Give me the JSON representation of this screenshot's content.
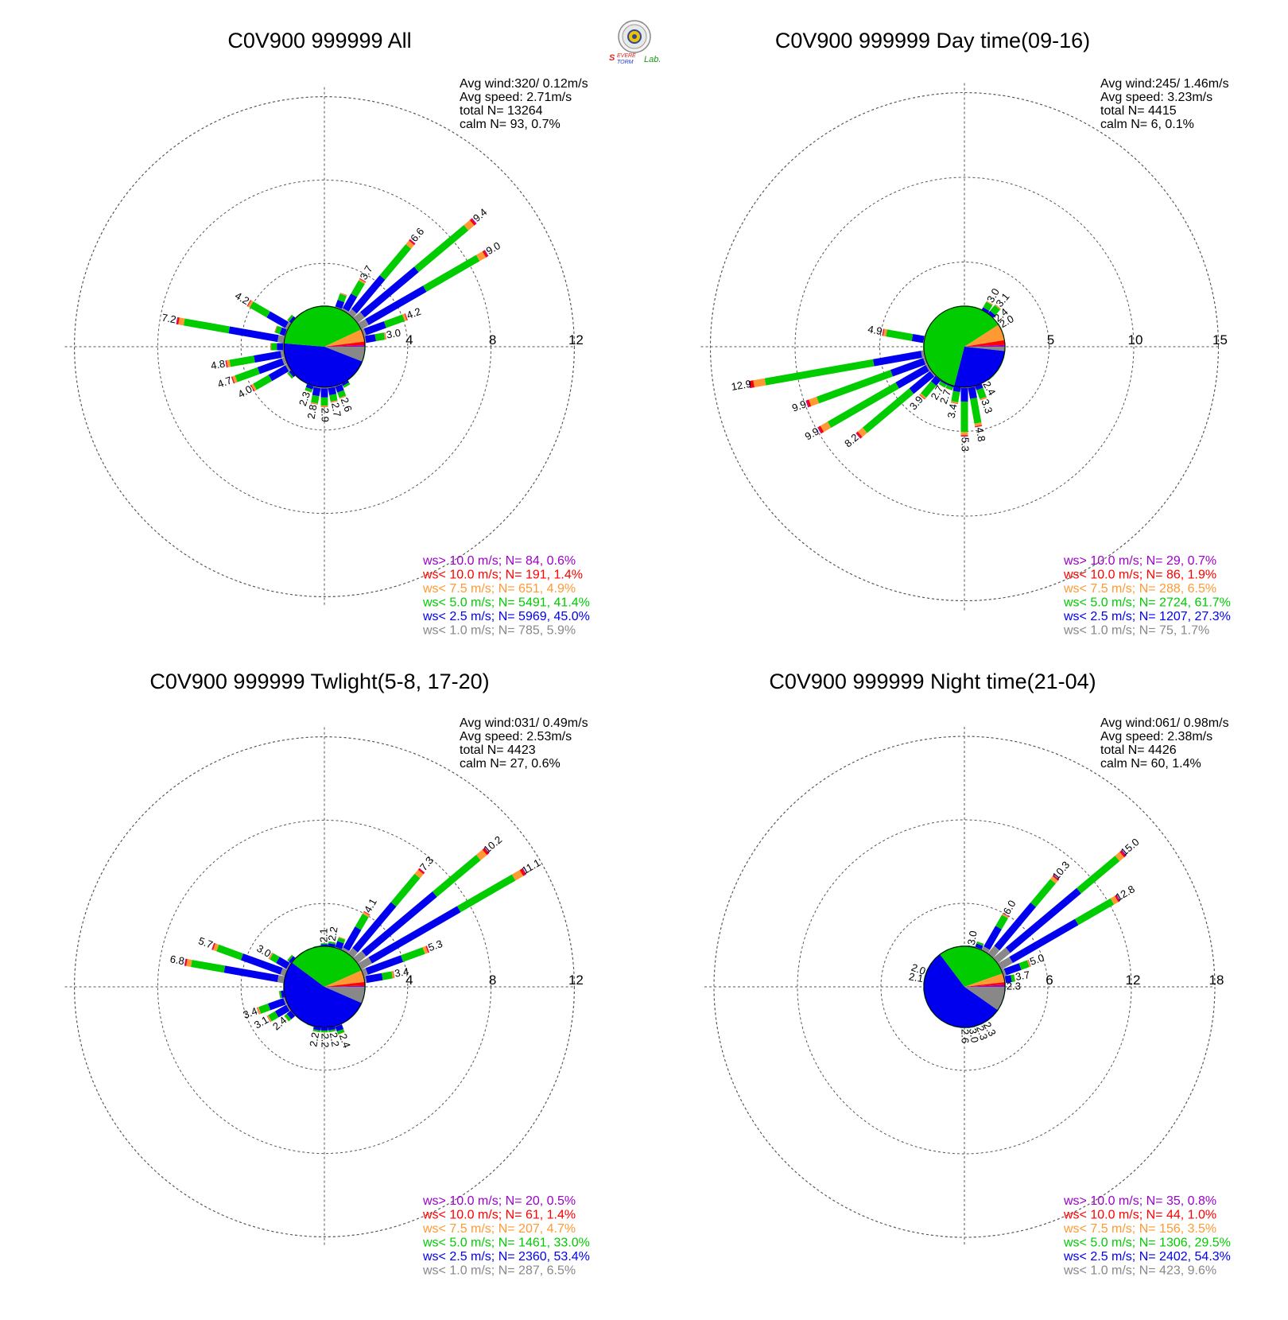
{
  "logo": {
    "word1": "Severe",
    "word2": "Storm",
    "word3": "Lab."
  },
  "legend_colors": {
    "gt10": "#9b00c8",
    "lt10": "#ff0000",
    "lt7_5": "#ff9933",
    "lt5": "#00cc00",
    "lt2_5": "#0000ee",
    "lt1": "#888888"
  },
  "chart_data": [
    {
      "type": "polar-stacked-bar",
      "title": "C0V900 999999 All",
      "stats": {
        "avg_wind": "Avg wind:320/ 0.12m/s",
        "avg_speed": "Avg speed: 2.71m/s",
        "total": "total N=       13264",
        "calm": "calm N=     93,   0.7%"
      },
      "rings": [
        4,
        8,
        12
      ],
      "ring_labels": [
        "4",
        "8",
        "12"
      ],
      "legend": [
        {
          "label": "ws> 10.0 m/s; N=",
          "n": "84",
          "pct": "0.6%",
          "color": "#9b00c8"
        },
        {
          "label": "ws< 10.0 m/s; N=",
          "n": "191",
          "pct": "1.4%",
          "color": "#ff0000"
        },
        {
          "label": "ws<  7.5 m/s; N=",
          "n": "651",
          "pct": "4.9%",
          "color": "#ff9933"
        },
        {
          "label": "ws<  5.0 m/s; N=",
          "n": "5491",
          "pct": "41.4%",
          "color": "#00cc00"
        },
        {
          "label": "ws<  2.5 m/s; N=",
          "n": "5969",
          "pct": "45.0%",
          "color": "#0000ee"
        },
        {
          "label": "ws<  1.0 m/s; N=",
          "n": "785",
          "pct": "5.9%",
          "color": "#888888"
        }
      ],
      "pie": [
        5.9,
        45.0,
        41.4,
        4.9,
        1.4,
        0.6
      ],
      "bars": [
        {
          "dir": 10,
          "total": 1.9
        },
        {
          "dir": 20,
          "total": 2.7
        },
        {
          "dir": 30,
          "total": 3.7,
          "label": "3.7"
        },
        {
          "dir": 40,
          "total": 6.6,
          "label": "6.6"
        },
        {
          "dir": 50,
          "total": 9.4,
          "label": "9.4"
        },
        {
          "dir": 60,
          "total": 9.0,
          "label": "9.0"
        },
        {
          "dir": 70,
          "total": 4.2,
          "label": "4.2"
        },
        {
          "dir": 80,
          "total": 3.0,
          "label": "3.0"
        },
        {
          "dir": 90,
          "total": 1.8
        },
        {
          "dir": 100,
          "total": 1.6
        },
        {
          "dir": 110,
          "total": 1.6
        },
        {
          "dir": 120,
          "total": 1.7
        },
        {
          "dir": 130,
          "total": 1.8
        },
        {
          "dir": 140,
          "total": 1.9
        },
        {
          "dir": 150,
          "total": 2.2
        },
        {
          "dir": 160,
          "total": 2.6,
          "label": "2.6"
        },
        {
          "dir": 170,
          "total": 2.7,
          "label": "2.7"
        },
        {
          "dir": 180,
          "total": 2.9,
          "label": "2.9"
        },
        {
          "dir": 190,
          "total": 2.8,
          "label": "2.8"
        },
        {
          "dir": 200,
          "total": 2.3,
          "label": "2.3"
        },
        {
          "dir": 210,
          "total": 1.8
        },
        {
          "dir": 220,
          "total": 1.9
        },
        {
          "dir": 230,
          "total": 2.2
        },
        {
          "dir": 240,
          "total": 4.0,
          "label": "4.0"
        },
        {
          "dir": 250,
          "total": 4.7,
          "label": "4.7"
        },
        {
          "dir": 260,
          "total": 4.8,
          "label": "4.8"
        },
        {
          "dir": 270,
          "total": 2.6
        },
        {
          "dir": 280,
          "total": 7.2,
          "label": "7.2"
        },
        {
          "dir": 290,
          "total": 2.5
        },
        {
          "dir": 300,
          "total": 4.2,
          "label": "4.2"
        },
        {
          "dir": 310,
          "total": 2.2
        },
        {
          "dir": 320,
          "total": 1.7
        },
        {
          "dir": 330,
          "total": 1.5
        },
        {
          "dir": 340,
          "total": 1.5
        },
        {
          "dir": 350,
          "total": 1.6
        },
        {
          "dir": 360,
          "total": 1.9
        }
      ]
    },
    {
      "type": "polar-stacked-bar",
      "title": "C0V900 999999 Day time(09-16)",
      "stats": {
        "avg_wind": "Avg wind:245/ 1.46m/s",
        "avg_speed": "Avg speed: 3.23m/s",
        "total": "total N=        4415",
        "calm": "calm N=       6,   0.1%"
      },
      "rings": [
        5,
        10,
        15
      ],
      "ring_labels": [
        "5",
        "10",
        "15"
      ],
      "legend": [
        {
          "label": "ws> 10.0 m/s; N=",
          "n": "29",
          "pct": "0.7%",
          "color": "#9b00c8"
        },
        {
          "label": "ws< 10.0 m/s; N=",
          "n": "86",
          "pct": "1.9%",
          "color": "#ff0000"
        },
        {
          "label": "ws<  7.5 m/s; N=",
          "n": "288",
          "pct": "6.5%",
          "color": "#ff9933"
        },
        {
          "label": "ws<  5.0 m/s; N=",
          "n": "2724",
          "pct": "61.7%",
          "color": "#00cc00"
        },
        {
          "label": "ws<  2.5 m/s; N=",
          "n": "1207",
          "pct": "27.3%",
          "color": "#0000ee"
        },
        {
          "label": "ws<  1.0 m/s; N=",
          "n": "75",
          "pct": "1.7%",
          "color": "#888888"
        }
      ],
      "pie": [
        1.7,
        27.3,
        61.7,
        6.5,
        1.9,
        0.7
      ],
      "bars": [
        {
          "dir": 10,
          "total": 1.8
        },
        {
          "dir": 20,
          "total": 2.0
        },
        {
          "dir": 30,
          "total": 3.0,
          "label": "3.0"
        },
        {
          "dir": 40,
          "total": 3.1,
          "label": "3.1"
        },
        {
          "dir": 50,
          "total": 2.4,
          "label": "2.4"
        },
        {
          "dir": 60,
          "total": 2.0,
          "label": "2.0"
        },
        {
          "dir": 70,
          "total": 1.6
        },
        {
          "dir": 80,
          "total": 1.4
        },
        {
          "dir": 90,
          "total": 1.5
        },
        {
          "dir": 100,
          "total": 1.6
        },
        {
          "dir": 110,
          "total": 1.7
        },
        {
          "dir": 120,
          "total": 1.9
        },
        {
          "dir": 130,
          "total": 2.0
        },
        {
          "dir": 140,
          "total": 2.2
        },
        {
          "dir": 150,
          "total": 2.4,
          "label": "2.4"
        },
        {
          "dir": 160,
          "total": 3.3,
          "label": "3.3"
        },
        {
          "dir": 170,
          "total": 4.8,
          "label": "4.8"
        },
        {
          "dir": 180,
          "total": 5.3,
          "label": "5.3"
        },
        {
          "dir": 190,
          "total": 3.4,
          "label": "3.4"
        },
        {
          "dir": 200,
          "total": 2.7,
          "label": "2.7"
        },
        {
          "dir": 210,
          "total": 2.7,
          "label": "2.7"
        },
        {
          "dir": 220,
          "total": 3.9,
          "label": "3.9"
        },
        {
          "dir": 230,
          "total": 8.2,
          "label": "8.2"
        },
        {
          "dir": 240,
          "total": 9.9,
          "label": "9.9"
        },
        {
          "dir": 250,
          "total": 9.9,
          "label": "9.9"
        },
        {
          "dir": 260,
          "total": 12.9,
          "label": "12.9"
        },
        {
          "dir": 270,
          "total": 2.2
        },
        {
          "dir": 280,
          "total": 4.9,
          "label": "4.9"
        },
        {
          "dir": 290,
          "total": 1.8
        },
        {
          "dir": 300,
          "total": 1.5
        },
        {
          "dir": 310,
          "total": 1.4
        },
        {
          "dir": 320,
          "total": 1.3
        },
        {
          "dir": 330,
          "total": 1.3
        },
        {
          "dir": 340,
          "total": 1.3
        },
        {
          "dir": 350,
          "total": 1.5
        },
        {
          "dir": 360,
          "total": 1.6
        }
      ]
    },
    {
      "type": "polar-stacked-bar",
      "title": "C0V900 999999 Twlight(5-8, 17-20)",
      "stats": {
        "avg_wind": "Avg wind:031/ 0.49m/s",
        "avg_speed": "Avg speed: 2.53m/s",
        "total": "total N=        4423",
        "calm": "calm N=     27,   0.6%"
      },
      "rings": [
        4,
        8,
        12
      ],
      "ring_labels": [
        "4",
        "8",
        "12"
      ],
      "legend": [
        {
          "label": "ws> 10.0 m/s; N=",
          "n": "20",
          "pct": "0.5%",
          "color": "#9b00c8"
        },
        {
          "label": "ws< 10.0 m/s; N=",
          "n": "61",
          "pct": "1.4%",
          "color": "#ff0000"
        },
        {
          "label": "ws<  7.5 m/s; N=",
          "n": "207",
          "pct": "4.7%",
          "color": "#ff9933"
        },
        {
          "label": "ws<  5.0 m/s; N=",
          "n": "1461",
          "pct": "33.0%",
          "color": "#00cc00"
        },
        {
          "label": "ws<  2.5 m/s; N=",
          "n": "2360",
          "pct": "53.4%",
          "color": "#0000ee"
        },
        {
          "label": "ws<  1.0 m/s; N=",
          "n": "287",
          "pct": "6.5%",
          "color": "#888888"
        }
      ],
      "pie": [
        6.5,
        53.4,
        33.0,
        4.7,
        1.4,
        0.5
      ],
      "bars": [
        {
          "dir": 0,
          "total": 2.1,
          "label": "2.1"
        },
        {
          "dir": 10,
          "total": 2.2,
          "label": "2.2"
        },
        {
          "dir": 20,
          "total": 2.5
        },
        {
          "dir": 30,
          "total": 4.1,
          "label": "4.1"
        },
        {
          "dir": 40,
          "total": 7.3,
          "label": "7.3"
        },
        {
          "dir": 50,
          "total": 10.2,
          "label": "10.2"
        },
        {
          "dir": 60,
          "total": 11.1,
          "label": "11.1"
        },
        {
          "dir": 70,
          "total": 5.3,
          "label": "5.3"
        },
        {
          "dir": 80,
          "total": 3.4,
          "label": "3.4"
        },
        {
          "dir": 90,
          "total": 1.9
        },
        {
          "dir": 100,
          "total": 1.6
        },
        {
          "dir": 110,
          "total": 1.6
        },
        {
          "dir": 120,
          "total": 1.6
        },
        {
          "dir": 130,
          "total": 1.7
        },
        {
          "dir": 140,
          "total": 1.8
        },
        {
          "dir": 150,
          "total": 1.9
        },
        {
          "dir": 160,
          "total": 2.4,
          "label": "2.4"
        },
        {
          "dir": 170,
          "total": 2.2,
          "label": "2.2"
        },
        {
          "dir": 180,
          "total": 2.2,
          "label": "2.2"
        },
        {
          "dir": 190,
          "total": 2.2,
          "label": "2.2"
        },
        {
          "dir": 200,
          "total": 2.0
        },
        {
          "dir": 210,
          "total": 1.8
        },
        {
          "dir": 220,
          "total": 1.8
        },
        {
          "dir": 230,
          "total": 2.4,
          "label": "2.4"
        },
        {
          "dir": 240,
          "total": 3.1,
          "label": "3.1"
        },
        {
          "dir": 250,
          "total": 3.4,
          "label": "3.4"
        },
        {
          "dir": 260,
          "total": 2.2
        },
        {
          "dir": 270,
          "total": 1.9
        },
        {
          "dir": 280,
          "total": 6.8,
          "label": "6.8"
        },
        {
          "dir": 290,
          "total": 5.7,
          "label": "5.7"
        },
        {
          "dir": 300,
          "total": 3.0,
          "label": "3.0"
        },
        {
          "dir": 310,
          "total": 2.2
        },
        {
          "dir": 320,
          "total": 1.7
        },
        {
          "dir": 330,
          "total": 1.6
        },
        {
          "dir": 340,
          "total": 1.7
        },
        {
          "dir": 350,
          "total": 2.0
        }
      ]
    },
    {
      "type": "polar-stacked-bar",
      "title": "C0V900 999999 Night time(21-04)",
      "stats": {
        "avg_wind": "Avg wind:061/ 0.98m/s",
        "avg_speed": "Avg speed: 2.38m/s",
        "total": "total N=        4426",
        "calm": "calm N=     60,   1.4%"
      },
      "rings": [
        6,
        12,
        18
      ],
      "ring_labels": [
        "6",
        "12",
        "18"
      ],
      "legend": [
        {
          "label": "ws> 10.0 m/s; N=",
          "n": "35",
          "pct": "0.8%",
          "color": "#9b00c8"
        },
        {
          "label": "ws< 10.0 m/s; N=",
          "n": "44",
          "pct": "1.0%",
          "color": "#ff0000"
        },
        {
          "label": "ws<  7.5 m/s; N=",
          "n": "156",
          "pct": "3.5%",
          "color": "#ff9933"
        },
        {
          "label": "ws<  5.0 m/s; N=",
          "n": "1306",
          "pct": "29.5%",
          "color": "#00cc00"
        },
        {
          "label": "ws<  2.5 m/s; N=",
          "n": "2402",
          "pct": "54.3%",
          "color": "#0000ee"
        },
        {
          "label": "ws<  1.0 m/s; N=",
          "n": "423",
          "pct": "9.6%",
          "color": "#888888"
        }
      ],
      "pie": [
        9.6,
        54.3,
        29.5,
        3.5,
        1.0,
        0.8
      ],
      "bars": [
        {
          "dir": 0,
          "total": 2.1
        },
        {
          "dir": 10,
          "total": 3.0,
          "label": "3.0"
        },
        {
          "dir": 20,
          "total": 3.4
        },
        {
          "dir": 30,
          "total": 6.0,
          "label": "6.0"
        },
        {
          "dir": 40,
          "total": 10.3,
          "label": "10.3"
        },
        {
          "dir": 50,
          "total": 15.0,
          "label": "15.0"
        },
        {
          "dir": 60,
          "total": 12.8,
          "label": "12.8"
        },
        {
          "dir": 70,
          "total": 5.0,
          "label": "5.0"
        },
        {
          "dir": 80,
          "total": 3.7,
          "label": "3.7"
        },
        {
          "dir": 90,
          "total": 2.3,
          "label": "2.3"
        },
        {
          "dir": 100,
          "total": 1.9
        },
        {
          "dir": 110,
          "total": 1.8
        },
        {
          "dir": 120,
          "total": 1.8
        },
        {
          "dir": 130,
          "total": 1.9
        },
        {
          "dir": 140,
          "total": 2.0
        },
        {
          "dir": 150,
          "total": 2.3,
          "label": "2.3"
        },
        {
          "dir": 160,
          "total": 2.3,
          "label": "2.3"
        },
        {
          "dir": 170,
          "total": 3.0,
          "label": "3.0"
        },
        {
          "dir": 180,
          "total": 2.6,
          "label": "2.6"
        },
        {
          "dir": 190,
          "total": 2.1
        },
        {
          "dir": 200,
          "total": 1.8
        },
        {
          "dir": 210,
          "total": 1.6
        },
        {
          "dir": 220,
          "total": 1.6
        },
        {
          "dir": 230,
          "total": 1.6
        },
        {
          "dir": 240,
          "total": 1.6
        },
        {
          "dir": 250,
          "total": 1.7
        },
        {
          "dir": 260,
          "total": 1.8
        },
        {
          "dir": 270,
          "total": 1.8
        },
        {
          "dir": 280,
          "total": 2.1,
          "label": "2.1"
        },
        {
          "dir": 290,
          "total": 2.0,
          "label": "2.0"
        },
        {
          "dir": 300,
          "total": 1.8
        },
        {
          "dir": 310,
          "total": 1.7
        },
        {
          "dir": 320,
          "total": 1.7
        },
        {
          "dir": 330,
          "total": 1.7
        },
        {
          "dir": 340,
          "total": 1.7
        },
        {
          "dir": 350,
          "total": 1.8
        }
      ]
    }
  ]
}
